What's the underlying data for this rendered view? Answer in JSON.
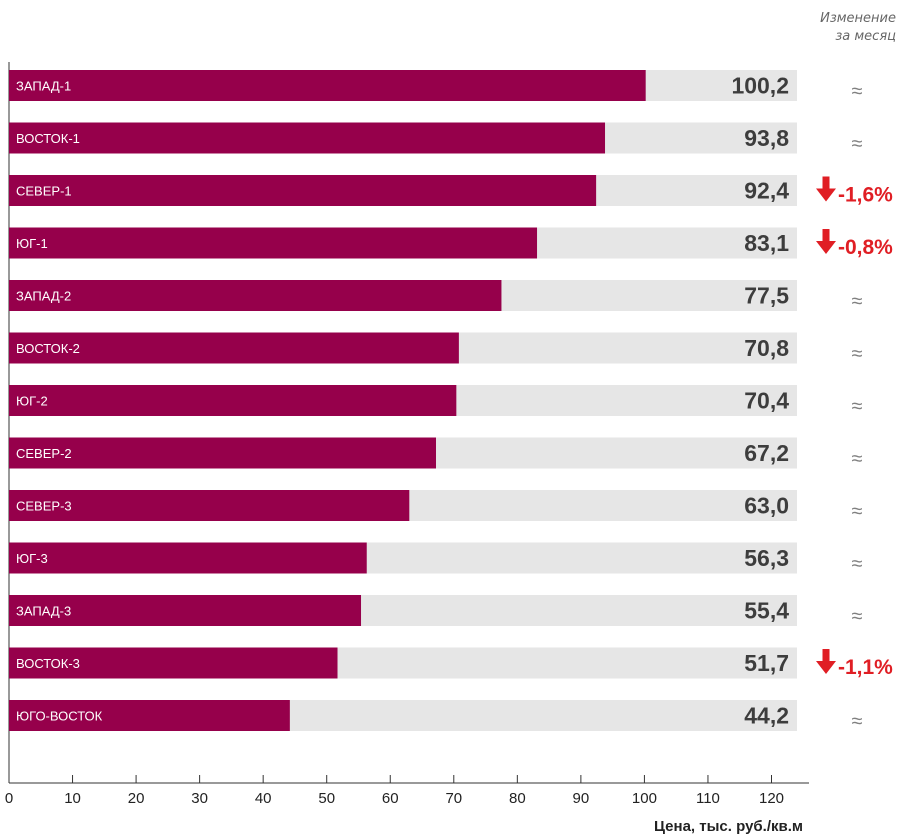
{
  "chart_data": {
    "type": "bar",
    "orientation": "horizontal",
    "categories": [
      "ЗАПАД-1",
      "ВОСТОК-1",
      "СЕВЕР-1",
      "ЮГ-1",
      "ЗАПАД-2",
      "ВОСТОК-2",
      "ЮГ-2",
      "СЕВЕР-2",
      "СЕВЕР-3",
      "ЮГ-3",
      "ЗАПАД-3",
      "ВОСТОК-3",
      "ЮГО-ВОСТОК"
    ],
    "values": [
      100.2,
      93.8,
      92.4,
      83.1,
      77.5,
      70.8,
      70.4,
      67.2,
      63.0,
      56.3,
      55.4,
      51.7,
      44.2
    ],
    "value_labels": [
      "100,2",
      "93,8",
      "92,4",
      "83,1",
      "77,5",
      "70,8",
      "70,4",
      "67,2",
      "63,0",
      "56,3",
      "55,4",
      "51,7",
      "44,2"
    ],
    "changes": [
      "≈",
      "≈",
      "-1,6%",
      "-0,8%",
      "≈",
      "≈",
      "≈",
      "≈",
      "≈",
      "≈",
      "≈",
      "-1,1%",
      "≈"
    ],
    "change_direction": [
      "flat",
      "flat",
      "down",
      "down",
      "flat",
      "flat",
      "flat",
      "flat",
      "flat",
      "flat",
      "flat",
      "down",
      "flat"
    ],
    "xlim": [
      0,
      120
    ],
    "xticks": [
      0,
      10,
      20,
      30,
      40,
      50,
      60,
      70,
      80,
      90,
      100,
      110,
      120
    ],
    "xlabel": "Цена, тыс. руб./кв.м",
    "change_header": [
      "Изменение",
      "за месяц"
    ],
    "colors": {
      "bar": "#96004b",
      "track": "#e6e6e6",
      "value_text": "#3d3d3d",
      "down": "#e01e24",
      "flat": "#808080",
      "axis": "#333333"
    }
  }
}
